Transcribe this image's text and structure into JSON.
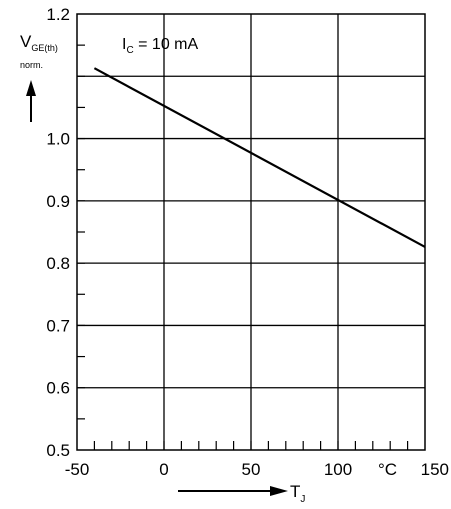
{
  "chart_data": {
    "type": "line",
    "ylabel_main": "V",
    "ylabel_sub": "GE(th)",
    "ylabel_norm": "norm.",
    "xlabel_main": "T",
    "xlabel_sub": "J",
    "unit_label": "°C",
    "annotation_main": "I",
    "annotation_sub": "C",
    "annotation_rest": " = 10 mA",
    "xlim": [
      -50,
      150
    ],
    "ylim": [
      0.5,
      1.2
    ],
    "x_ticks_labeled": [
      "-50",
      "0",
      "50",
      "100",
      "150"
    ],
    "y_ticks_labeled": [
      "0.5",
      "0.6",
      "0.7",
      "0.8",
      "0.9",
      "1.0",
      "1.2"
    ],
    "x_major_gridlines": [
      0,
      50,
      100
    ],
    "y_major_gridlines": [
      0.6,
      0.7,
      0.8,
      0.9,
      1.0,
      1.1
    ],
    "grid": true,
    "series": [
      {
        "x": [
          -40,
          150
        ],
        "y": [
          1.113,
          0.826
        ]
      }
    ]
  }
}
